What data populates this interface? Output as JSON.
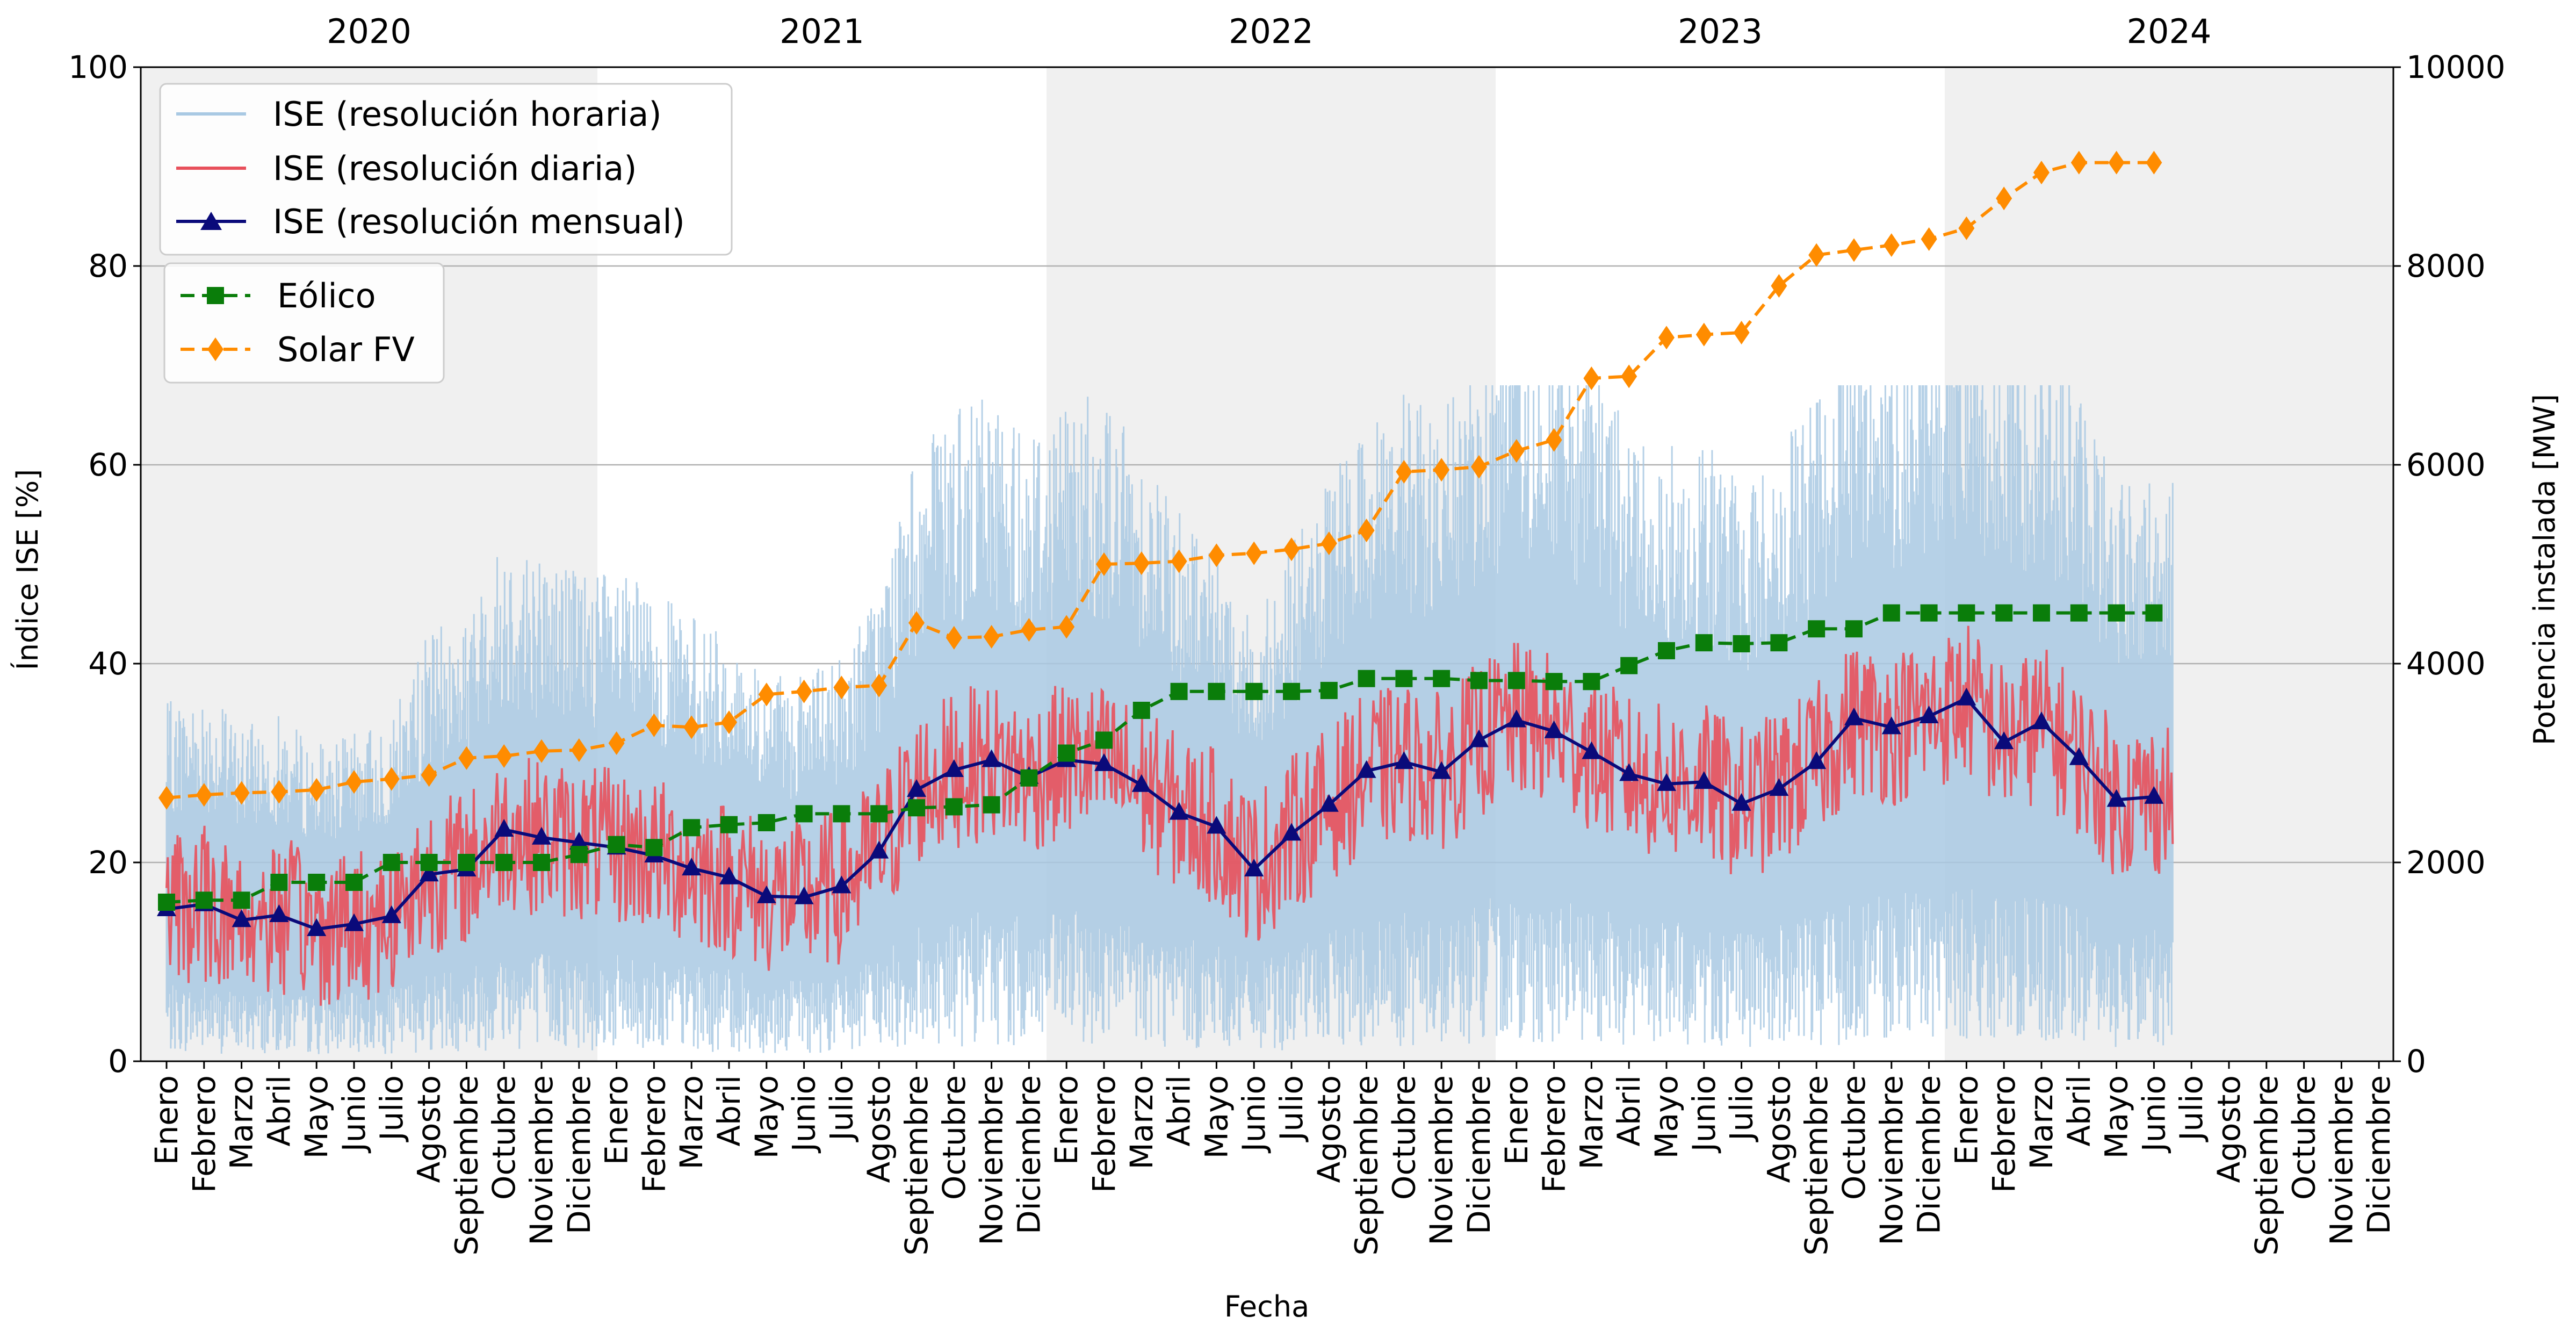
{
  "chart_data": {
    "type": "line",
    "title": "",
    "xlabel": "Fecha",
    "ylabel": "Índice ISE [%]",
    "y2label": "Potencia instalada [MW]",
    "ylim": [
      0,
      100
    ],
    "y2lim": [
      0,
      10000
    ],
    "yticks": [
      0,
      20,
      40,
      60,
      80,
      100
    ],
    "y2ticks": [
      0,
      2000,
      4000,
      6000,
      8000,
      10000
    ],
    "grid": "horizontal",
    "years": [
      "2020",
      "2021",
      "2022",
      "2023",
      "2024"
    ],
    "year_bands_shaded": [
      true,
      false,
      true,
      false,
      true
    ],
    "month_labels": [
      "Enero",
      "Febrero",
      "Marzo",
      "Abril",
      "Mayo",
      "Junio",
      "Julio",
      "Agosto",
      "Septiembre",
      "Octubre",
      "Noviembre",
      "Diciembre"
    ],
    "legend_top": {
      "placement": "top-left",
      "entries": [
        "ISE (resolución horaria)",
        "ISE (resolución diaria)",
        "ISE (resolución mensual)"
      ]
    },
    "legend_bottom": {
      "placement": "upper-left",
      "entries": [
        "Eólico",
        "Solar FV"
      ]
    },
    "colors": {
      "hourly": "#a9c9e3",
      "daily": "#e8505b",
      "monthly": "#0a0a7a",
      "wind": "#0a7d0a",
      "solar": "#ff8c00",
      "band": "#f0f0f0",
      "grid": "#b0b0b0"
    },
    "series": [
      {
        "name": "ISE (resolución mensual)",
        "axis": "left",
        "values": [
          15.3,
          15.8,
          14.2,
          14.7,
          13.3,
          13.8,
          14.6,
          18.8,
          19.3,
          23.3,
          22.5,
          22.0,
          21.5,
          20.7,
          19.4,
          18.5,
          16.6,
          16.5,
          17.6,
          21.1,
          27.3,
          29.3,
          30.3,
          28.6,
          30.3,
          29.9,
          27.8,
          25.0,
          23.6,
          19.3,
          22.9,
          25.8,
          29.2,
          30.1,
          29.1,
          32.3,
          34.3,
          33.2,
          31.1,
          28.9,
          27.9,
          28.1,
          25.9,
          27.4,
          30.1,
          34.5,
          33.6,
          34.7,
          36.5,
          32.1,
          34.1,
          30.5,
          26.3,
          26.6
        ]
      },
      {
        "name": "Eólico",
        "axis": "right",
        "values": [
          1600,
          1620,
          1620,
          1800,
          1800,
          1800,
          2000,
          2000,
          2000,
          2000,
          2000,
          2080,
          2180,
          2150,
          2350,
          2380,
          2400,
          2490,
          2490,
          2490,
          2550,
          2560,
          2580,
          2850,
          3100,
          3230,
          3530,
          3720,
          3720,
          3720,
          3720,
          3730,
          3850,
          3850,
          3850,
          3830,
          3830,
          3820,
          3820,
          3980,
          4130,
          4210,
          4200,
          4210,
          4350,
          4350,
          4510,
          4510,
          4510,
          4510,
          4510,
          4510,
          4510,
          4510
        ]
      },
      {
        "name": "Solar FV",
        "axis": "right",
        "values": [
          2650,
          2680,
          2700,
          2710,
          2730,
          2810,
          2840,
          2880,
          3050,
          3070,
          3120,
          3130,
          3200,
          3380,
          3360,
          3410,
          3690,
          3720,
          3760,
          3780,
          4410,
          4260,
          4270,
          4340,
          4370,
          5000,
          5010,
          5030,
          5090,
          5110,
          5150,
          5210,
          5340,
          5930,
          5950,
          5980,
          6140,
          6250,
          6870,
          6890,
          7280,
          7310,
          7330,
          7800,
          8110,
          8160,
          8210,
          8270,
          8380,
          8680,
          8940,
          9040,
          9040,
          9040
        ]
      },
      {
        "name": "ISE (resolución diaria)",
        "axis": "left",
        "summary": "daily series oscillating about the monthly mean"
      },
      {
        "name": "ISE (resolución horaria)",
        "axis": "left",
        "summary": "hourly series spanning roughly 0 to 68"
      }
    ]
  }
}
